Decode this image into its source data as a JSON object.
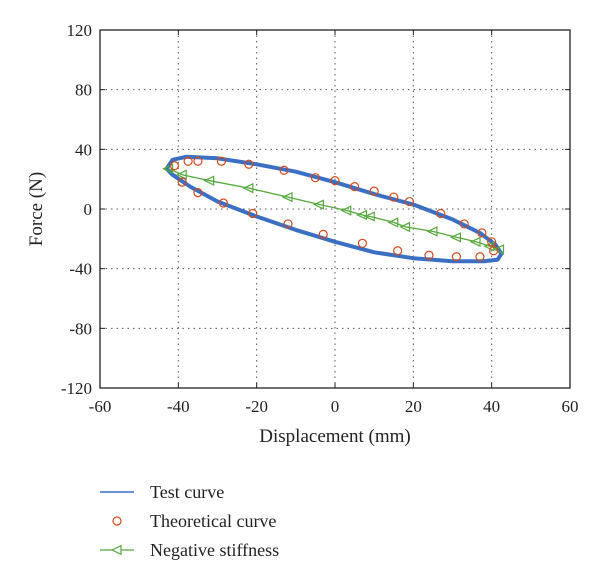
{
  "chart_data": {
    "type": "line",
    "title": "",
    "xlabel": "Displacement (mm)",
    "ylabel": "Force (N)",
    "xlim": [
      -60,
      60
    ],
    "ylim": [
      -120,
      120
    ],
    "xticks": [
      -60,
      -40,
      -20,
      0,
      20,
      40,
      60
    ],
    "yticks": [
      -120,
      -80,
      -40,
      0,
      40,
      80,
      120
    ],
    "x_tick_labels": [
      "-60",
      "-40",
      "-20",
      "0",
      "20",
      "40",
      "60"
    ],
    "y_tick_labels": [
      "-120",
      "-80",
      "-40",
      "0",
      "40",
      "80",
      "120"
    ],
    "grid": true,
    "legend_position": "bottom-left, below plot",
    "series": [
      {
        "name": "Test curve",
        "style": "line",
        "color": "#3a6fc4",
        "x": [
          -43,
          -41.5,
          -38,
          -30,
          -20,
          -10,
          0,
          10,
          20,
          30,
          37,
          41,
          42.5,
          41.5,
          38,
          30,
          20,
          10,
          0,
          -10,
          -20,
          -30,
          -37,
          -41.5,
          -43
        ],
        "y": [
          27,
          33,
          35,
          34,
          30,
          25,
          18,
          10,
          3,
          -7,
          -16,
          -24,
          -30,
          -34,
          -35,
          -35,
          -33,
          -29,
          -22,
          -14,
          -5,
          5,
          15,
          23,
          27
        ]
      },
      {
        "name": "Theoretical curve",
        "style": "marker-circle",
        "color": "#d24a1e",
        "x": [
          -41,
          -37.5,
          -35,
          -29,
          -22,
          -13,
          -5,
          0,
          5,
          10,
          15,
          19,
          27,
          33,
          37.5,
          40,
          -39,
          -35,
          -28.5,
          -21,
          -12,
          -3,
          7,
          16,
          24,
          31,
          37,
          40.5
        ],
        "y": [
          29,
          32,
          32,
          32,
          30,
          26,
          21,
          19,
          15,
          12,
          8,
          5,
          -3,
          -10,
          -16,
          -22,
          18,
          11,
          4,
          -3,
          -10,
          -17,
          -23,
          -28,
          -31,
          -32,
          -32,
          -28
        ]
      },
      {
        "name": "Negative stiffness",
        "style": "line-triangle-left",
        "color": "#56a83c",
        "x": [
          -42.5,
          -39,
          -32,
          -22,
          -12,
          -4,
          3,
          7,
          9,
          15,
          18,
          25,
          31,
          36,
          39.5,
          42
        ],
        "y": [
          27,
          23,
          19,
          14,
          8,
          3,
          -1,
          -4,
          -5,
          -9,
          -12,
          -15,
          -19,
          -22,
          -25,
          -27
        ]
      }
    ]
  }
}
